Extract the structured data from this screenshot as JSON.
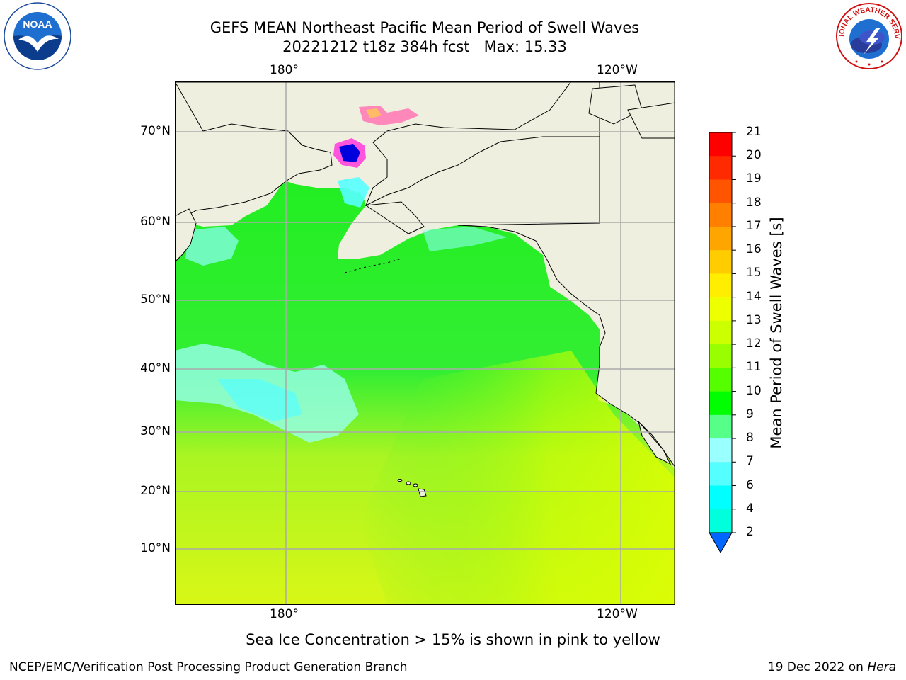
{
  "title": {
    "line1": "GEFS MEAN Northeast Pacific Mean Period of Swell Waves",
    "line2": "20221212 t18z 384h fcst   Max: 15.33"
  },
  "map": {
    "lon_labels_top": [
      "180°",
      "120°W"
    ],
    "lon_labels_bottom": [
      "180°",
      "120°W"
    ],
    "lat_labels": [
      "70°N",
      "60°N",
      "50°N",
      "40°N",
      "30°N",
      "20°N",
      "10°N"
    ]
  },
  "colorbar": {
    "label": "Mean Period of Swell Waves [s]",
    "ticks": [
      "21",
      "20",
      "19",
      "18",
      "17",
      "16",
      "15",
      "14",
      "13",
      "12",
      "11",
      "10",
      "9",
      "8",
      "7",
      "6",
      "4",
      "2"
    ],
    "colors": [
      "#ff0000",
      "#ff2a00",
      "#ff5500",
      "#ff7f00",
      "#ffa500",
      "#ffcc00",
      "#ffee00",
      "#eeff00",
      "#ccff00",
      "#99ff00",
      "#55ff00",
      "#00ff00",
      "#55ff88",
      "#99ffff",
      "#55ffff",
      "#00ffff",
      "#00ffdd",
      "#00aaff",
      "#0066ff"
    ]
  },
  "footer": {
    "ice_note": "Sea Ice Concentration > 15% is shown in pink to yellow",
    "left": "NCEP/EMC/Verification Post Processing Product Generation Branch",
    "right_date": "19 Dec 2022 on",
    "right_host": "Hera"
  },
  "logos": {
    "noaa": "NOAA",
    "nws_arc": "NATIONAL WEATHER SERVICE"
  }
}
